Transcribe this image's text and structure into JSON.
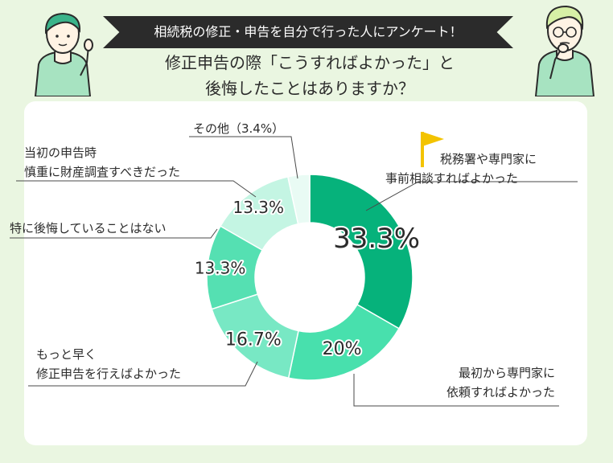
{
  "header": {
    "banner": "相続税の修正・申告を自分で行った人にアンケート！",
    "subtitle_line1": "修正申告の際「こうすればよかった」と",
    "subtitle_line2": "後悔したことはありますか？"
  },
  "colors": {
    "background": "#eaf6e1",
    "slices": [
      "#06b27b",
      "#48e0ad",
      "#78e8c4",
      "#55e0b2",
      "#c4f5e3",
      "#e9fbf4"
    ],
    "flag": "#f3c300",
    "banner": "#2b2b2b"
  },
  "icons": [
    "flag-icon",
    "person-pointing-icon",
    "person-thinking-icon"
  ],
  "labels": {
    "slice0_line1": "税務署や専門家に",
    "slice0_line2": "事前相談すればよかった",
    "slice1_line1": "最初から専門家に",
    "slice1_line2": "依頼すればよかった",
    "slice2_line1": "もっと早く",
    "slice2_line2": "修正申告を行えばよかった",
    "slice3_line1": "特に後悔していることはない",
    "slice4_line1": "当初の申告時",
    "slice4_line2": "慎重に財産調査すべきだった",
    "slice5_line1": "その他（3.4%）"
  },
  "chart_data": {
    "type": "pie",
    "donut": true,
    "categories": [
      "税務署や専門家に事前相談すればよかった",
      "最初から専門家に依頼すればよかった",
      "もっと早く修正申告を行えばよかった",
      "特に後悔していることはない",
      "当初の申告時慎重に財産調査すべきだった",
      "その他"
    ],
    "values": [
      33.3,
      20,
      16.7,
      13.3,
      13.3,
      3.4
    ],
    "value_labels": [
      "33.3%",
      "20%",
      "16.7%",
      "13.3%",
      "13.3%",
      ""
    ],
    "unit": "%"
  }
}
